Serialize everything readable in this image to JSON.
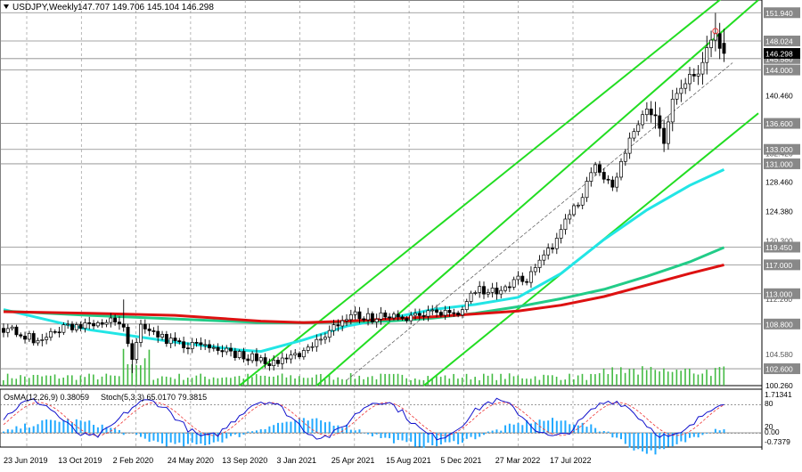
{
  "header": {
    "symbol": "USDJPY,Weekly",
    "ohlc": "147.707 149.706 145.104 146.298"
  },
  "indicator_header": {
    "osma": "OsMA(12,26,9) 0.38059",
    "stoch": "Stoch(5,3,3) 65.0170 79.3815"
  },
  "colors": {
    "background": "#ffffff",
    "bull_candle": "#ffffff",
    "bear_candle": "#000000",
    "channel": "#22dd22",
    "ma_cyan": "#22e5e5",
    "ma_green": "#22cc88",
    "ma_red": "#dd1111",
    "volume": "#44bb44",
    "osma_hist": "#22aaff",
    "stoch_main": "#1111cc",
    "stoch_signal": "#ee3333",
    "level_line": "#888888",
    "price_tag": "#000000"
  },
  "chart_data": {
    "type": "candlestick",
    "instrument": "USDJPY",
    "timeframe": "Weekly",
    "ylim": [
      100.26,
      153.7
    ],
    "y_tick_labels": [
      "151.940",
      "148.024",
      "145.580",
      "144.000",
      "140.460",
      "136.600",
      "133.000",
      "131.000",
      "128.460",
      "124.380",
      "119.450",
      "117.000",
      "113.000",
      "108.800",
      "102.600",
      "100.260"
    ],
    "y_extra_labels": [
      "146.298",
      "132.420",
      "120.300",
      "116.940",
      "112.260",
      "104.580"
    ],
    "x_labels": [
      "23 Jun 2019",
      "13 Oct 2019",
      "2 Feb 2020",
      "24 May 2020",
      "13 Sep 2020",
      "3 Jan 2021",
      "25 Apr 2021",
      "15 Aug 2021",
      "5 Dec 2021",
      "27 Mar 2022",
      "17 Jul 2022"
    ],
    "horizontal_levels": [
      151.94,
      148.024,
      145.58,
      144.0,
      136.6,
      133.0,
      131.0,
      119.45,
      117.0,
      113.0,
      108.8,
      102.6
    ],
    "current_price": 146.298,
    "last_candle": {
      "open": 147.707,
      "high": 149.706,
      "low": 145.104,
      "close": 146.298
    },
    "close_path": [
      [
        0,
        108.2
      ],
      [
        4,
        107.6
      ],
      [
        8,
        106.3
      ],
      [
        12,
        107.8
      ],
      [
        17,
        108.6
      ],
      [
        20,
        108.9
      ],
      [
        24,
        109.5
      ],
      [
        28,
        108.0
      ],
      [
        30,
        104.0
      ],
      [
        32,
        108.5
      ],
      [
        34,
        107.4
      ],
      [
        38,
        106.6
      ],
      [
        42,
        105.8
      ],
      [
        46,
        106.0
      ],
      [
        50,
        105.5
      ],
      [
        54,
        104.6
      ],
      [
        58,
        104.2
      ],
      [
        62,
        103.6
      ],
      [
        66,
        103.9
      ],
      [
        70,
        105.0
      ],
      [
        74,
        107.0
      ],
      [
        78,
        109.0
      ],
      [
        82,
        110.0
      ],
      [
        86,
        109.6
      ],
      [
        90,
        110.2
      ],
      [
        94,
        109.8
      ],
      [
        98,
        110.0
      ],
      [
        102,
        110.4
      ],
      [
        106,
        110.5
      ],
      [
        110,
        113.7
      ],
      [
        114,
        113.3
      ],
      [
        118,
        114.3
      ],
      [
        120,
        115.0
      ],
      [
        122,
        114.8
      ],
      [
        126,
        118.0
      ],
      [
        128,
        119.5
      ],
      [
        130,
        122.3
      ],
      [
        132,
        124.0
      ],
      [
        134,
        125.6
      ],
      [
        136,
        128.2
      ],
      [
        138,
        130.5
      ],
      [
        140,
        129.0
      ],
      [
        142,
        127.9
      ],
      [
        144,
        131.0
      ],
      [
        146,
        134.5
      ],
      [
        148,
        136.3
      ],
      [
        150,
        139.0
      ],
      [
        152,
        137.5
      ],
      [
        154,
        134.0
      ],
      [
        156,
        140.5
      ],
      [
        158,
        141.3
      ],
      [
        160,
        143.0
      ],
      [
        162,
        143.8
      ],
      [
        164,
        147.0
      ],
      [
        166,
        148.6
      ],
      [
        168,
        146.3
      ]
    ],
    "series": [
      {
        "name": "",
        "color": "#22e5e5",
        "values": [
          [
            0,
            110.8
          ],
          [
            20,
            108.0
          ],
          [
            40,
            106.3
          ],
          [
            55,
            105.2
          ],
          [
            60,
            105.0
          ],
          [
            70,
            106.6
          ],
          [
            80,
            108.5
          ],
          [
            90,
            109.6
          ],
          [
            100,
            110.8
          ],
          [
            110,
            111.5
          ],
          [
            120,
            112.5
          ],
          [
            130,
            115.8
          ],
          [
            140,
            120.5
          ],
          [
            150,
            124.6
          ],
          [
            160,
            128.0
          ],
          [
            168,
            130.2
          ]
        ]
      },
      {
        "name": "",
        "color": "#22cc88",
        "values": [
          [
            0,
            110.6
          ],
          [
            20,
            110.0
          ],
          [
            40,
            109.5
          ],
          [
            60,
            109.0
          ],
          [
            70,
            109.0
          ],
          [
            80,
            109.1
          ],
          [
            90,
            109.2
          ],
          [
            100,
            109.6
          ],
          [
            110,
            110.3
          ],
          [
            120,
            111.2
          ],
          [
            130,
            112.3
          ],
          [
            140,
            113.6
          ],
          [
            150,
            115.4
          ],
          [
            160,
            117.4
          ],
          [
            168,
            119.4
          ]
        ]
      },
      {
        "name": "",
        "color": "#dd1111",
        "values": [
          [
            0,
            110.5
          ],
          [
            20,
            110.3
          ],
          [
            40,
            110.0
          ],
          [
            60,
            109.2
          ],
          [
            70,
            109.0
          ],
          [
            80,
            109.2
          ],
          [
            90,
            109.5
          ],
          [
            100,
            109.8
          ],
          [
            110,
            110.2
          ],
          [
            120,
            110.6
          ],
          [
            130,
            111.4
          ],
          [
            140,
            112.6
          ],
          [
            150,
            114.2
          ],
          [
            160,
            115.8
          ],
          [
            168,
            117.0
          ]
        ]
      }
    ],
    "channel_lines": [
      [
        [
          73,
          100.26
        ],
        [
          176,
          153.7
        ]
      ],
      [
        [
          98,
          100.26
        ],
        [
          176,
          138.0
        ]
      ],
      [
        [
          80,
          101.0
        ],
        [
          170,
          145.0
        ]
      ]
    ],
    "stoch_overbought": 80,
    "stoch_oversold": 20,
    "indicator_labels": [
      "1.71341",
      "80",
      "20",
      "0.00",
      "-0.7379"
    ]
  }
}
